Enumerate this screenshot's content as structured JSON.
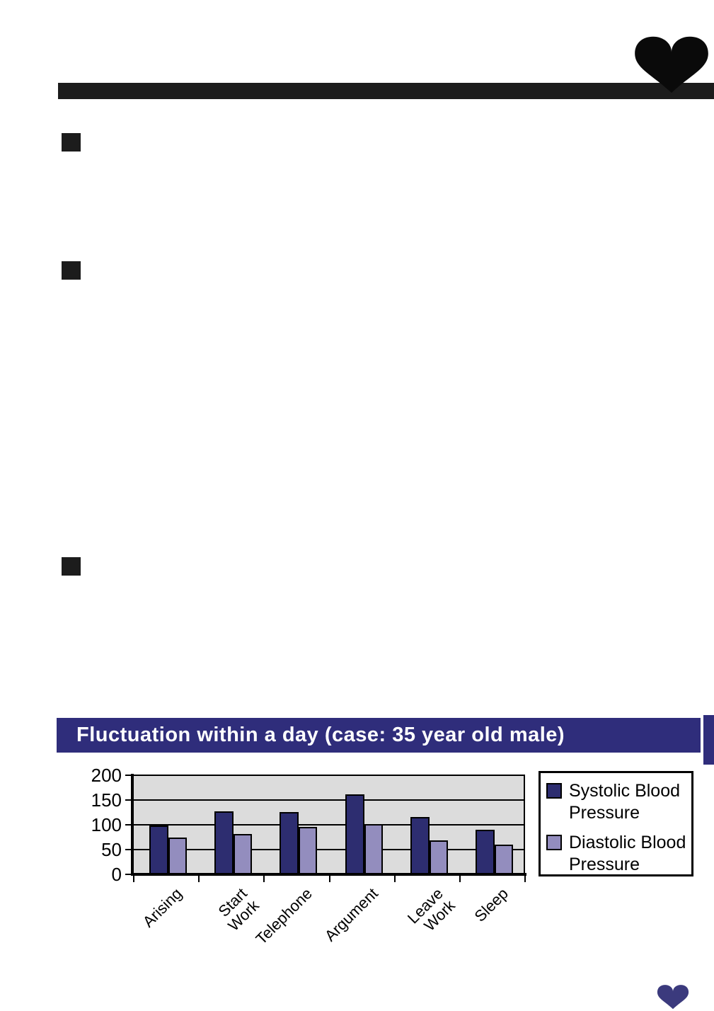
{
  "header": {
    "rule_color": "#1C1C1C",
    "heart_icon_color": "#0A0A0A"
  },
  "section_bullets": [
    {
      "color": "#1C1C1C"
    },
    {
      "color": "#1C1C1C"
    },
    {
      "color": "#1C1C1C"
    }
  ],
  "banner": {
    "bg_color": "#2F2D7B",
    "text_color": "#FFFFFF"
  },
  "chart_data": {
    "type": "bar",
    "title": "Fluctuation within a day (case: 35 year old male)",
    "categories": [
      "Arising",
      "Start\nWork",
      "Telephone",
      "Argument",
      "Leave\nWork",
      "Sleep"
    ],
    "series": [
      {
        "name": "Systolic Blood\nPressure",
        "color": "#2D2D70",
        "values": [
          98,
          127,
          125,
          162,
          116,
          90
        ]
      },
      {
        "name": "Diastolic Blood\nPressure",
        "color": "#938DBE",
        "values": [
          74,
          82,
          96,
          102,
          69,
          60
        ]
      }
    ],
    "xlabel": "",
    "ylabel": "",
    "ylim": [
      0,
      200
    ],
    "yticks": [
      0,
      50,
      100,
      150,
      200
    ],
    "grid": true,
    "plot_bg": "#DCDCDC",
    "legend_position": "right"
  },
  "footer": {
    "heart_icon_color": "#3B3A7D"
  }
}
